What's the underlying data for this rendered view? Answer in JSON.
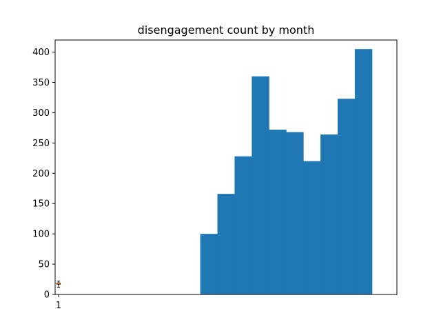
{
  "chart_data": {
    "type": "bar",
    "title": "disengagement count by month",
    "xlabel": "",
    "ylabel": "",
    "ylim": [
      0,
      420
    ],
    "xlim": [
      0.8,
      20.7
    ],
    "x_ticks": [
      1
    ],
    "x_tick_labels": [
      "1"
    ],
    "y_ticks": [
      0,
      50,
      100,
      150,
      200,
      250,
      300,
      350,
      400
    ],
    "bar_color": "#1f77b4",
    "bar_width": 1.0,
    "series": [
      {
        "name": "disengagement count",
        "x": [
          9.75,
          10.75,
          11.75,
          12.75,
          13.75,
          14.75,
          15.75,
          16.75,
          17.75,
          18.75
        ],
        "values": [
          100,
          166,
          228,
          360,
          272,
          268,
          220,
          264,
          323,
          405
        ]
      }
    ],
    "box_marker": {
      "x": 1,
      "values": [
        12,
        17,
        18,
        19,
        22
      ],
      "median": 18,
      "box_color": "#000000",
      "median_color": "#ff7f0e"
    }
  }
}
